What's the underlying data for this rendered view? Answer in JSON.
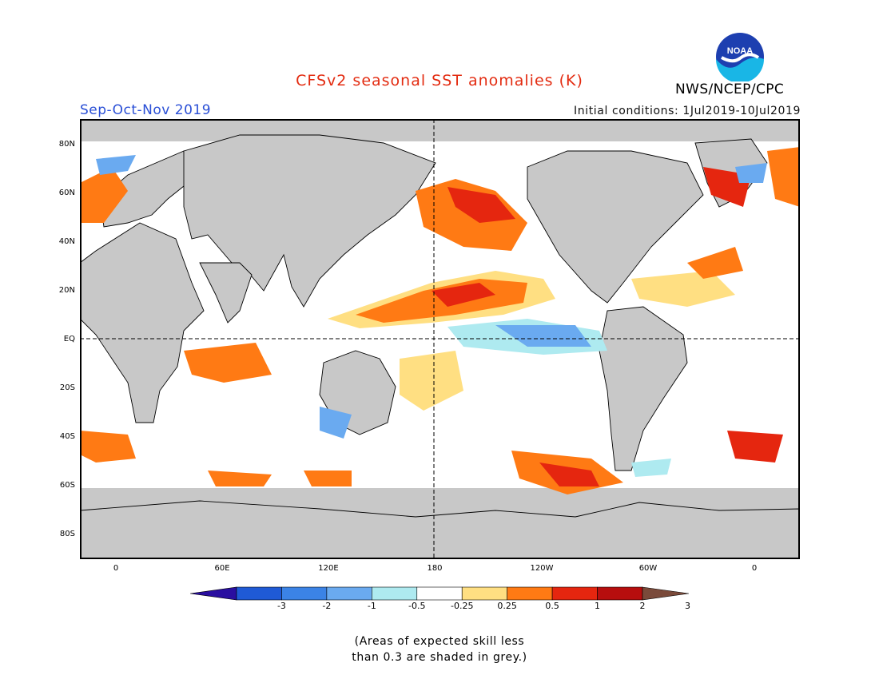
{
  "header": {
    "title": "CFSv2 seasonal SST anomalies (K)",
    "season": "Sep-Oct-Nov 2019",
    "initial_conditions": "Initial conditions: 1Jul2019-10Jul2019",
    "agency": "NWS/NCEP/CPC",
    "logo_text": "NOAA"
  },
  "colors": {
    "title": "#e32b10",
    "season": "#2a4fd6",
    "land": "#c8c8c8",
    "ocean_neutral": "#ffffff"
  },
  "map": {
    "lat_labels": [
      "80N",
      "60N",
      "40N",
      "20N",
      "EQ",
      "20S",
      "40S",
      "60S",
      "80S"
    ],
    "lon_labels": [
      "0",
      "60E",
      "120E",
      "180",
      "120W",
      "60W",
      "0"
    ]
  },
  "colorbar": {
    "labels": [
      "-3",
      "-2",
      "-1",
      "-0.5",
      "-0.25",
      "0.25",
      "0.5",
      "1",
      "2",
      "3"
    ],
    "colors": [
      "#2a0fa0",
      "#1f5ad6",
      "#3b83e6",
      "#6aaaf0",
      "#aeeaf0",
      "#ffffff",
      "#ffdf82",
      "#ff7a14",
      "#e5260f",
      "#b70e0e",
      "#7a4a3a"
    ]
  },
  "footnote": {
    "line1": "(Areas of expected skill less",
    "line2": "than 0.3 are shaded in grey.)"
  }
}
